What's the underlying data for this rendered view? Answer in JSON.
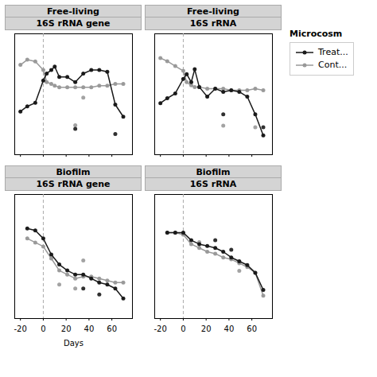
{
  "chart_data": [
    {
      "type": "line",
      "title": "Free-living",
      "subtitle": "16S rRNA gene",
      "xlim": [
        -25,
        78
      ],
      "xticks": [
        -20,
        0,
        20,
        40,
        60
      ],
      "ylim": [
        0.05,
        0.75
      ],
      "tick_labels": false,
      "ref_x": 0,
      "series": [
        {
          "name": "Treat...",
          "color": "#1a1a1a",
          "marker": "o",
          "x": [
            -20,
            -14,
            -7,
            0,
            3,
            7,
            10,
            14,
            21,
            28,
            35,
            42,
            49,
            56,
            63,
            70
          ],
          "values": [
            0.3,
            0.33,
            0.35,
            0.48,
            0.52,
            0.54,
            0.56,
            0.5,
            0.5,
            0.47,
            0.52,
            0.54,
            0.54,
            0.53,
            0.34,
            0.27
          ],
          "points_x": [
            -20,
            -14,
            -7,
            0,
            3,
            7,
            10,
            14,
            21,
            28,
            35,
            42,
            49,
            56,
            63,
            70,
            28,
            63
          ],
          "points_values": [
            0.3,
            0.33,
            0.35,
            0.48,
            0.52,
            0.54,
            0.56,
            0.5,
            0.5,
            0.47,
            0.52,
            0.54,
            0.54,
            0.53,
            0.34,
            0.27,
            0.2,
            0.17
          ]
        },
        {
          "name": "Cont...",
          "color": "#999999",
          "marker": "o",
          "x": [
            -20,
            -14,
            -7,
            0,
            3,
            7,
            10,
            14,
            21,
            28,
            35,
            42,
            49,
            56,
            63,
            70
          ],
          "values": [
            0.57,
            0.6,
            0.59,
            0.54,
            0.47,
            0.46,
            0.45,
            0.44,
            0.44,
            0.44,
            0.44,
            0.44,
            0.45,
            0.45,
            0.46,
            0.46
          ],
          "points_x": [
            -20,
            -14,
            -7,
            0,
            3,
            7,
            10,
            14,
            21,
            28,
            35,
            42,
            49,
            56,
            63,
            70,
            35,
            28
          ],
          "points_values": [
            0.57,
            0.6,
            0.59,
            0.54,
            0.47,
            0.46,
            0.45,
            0.44,
            0.44,
            0.44,
            0.44,
            0.44,
            0.45,
            0.45,
            0.46,
            0.46,
            0.38,
            0.22
          ]
        }
      ]
    },
    {
      "type": "line",
      "title": "Free-living",
      "subtitle": "16S rRNA",
      "xlim": [
        -25,
        78
      ],
      "xticks": [
        -20,
        0,
        20,
        40,
        60
      ],
      "ylim": [
        0.05,
        0.8
      ],
      "tick_labels": false,
      "ref_x": 0,
      "legend": "right",
      "legend_title": "Microcosm",
      "series": [
        {
          "name": "Treat...",
          "color": "#1a1a1a",
          "marker": "o",
          "x": [
            -20,
            -14,
            -7,
            0,
            3,
            7,
            10,
            14,
            21,
            28,
            35,
            42,
            49,
            56,
            63,
            70
          ],
          "values": [
            0.37,
            0.4,
            0.43,
            0.52,
            0.55,
            0.5,
            0.58,
            0.47,
            0.41,
            0.46,
            0.44,
            0.45,
            0.44,
            0.41,
            0.3,
            0.17
          ],
          "points_x": [
            -20,
            -14,
            -7,
            0,
            3,
            7,
            10,
            14,
            21,
            28,
            35,
            42,
            49,
            56,
            63,
            70,
            35,
            70
          ],
          "points_values": [
            0.37,
            0.4,
            0.43,
            0.52,
            0.55,
            0.5,
            0.58,
            0.47,
            0.41,
            0.46,
            0.44,
            0.45,
            0.44,
            0.41,
            0.3,
            0.17,
            0.3,
            0.22
          ]
        },
        {
          "name": "Cont...",
          "color": "#999999",
          "marker": "o",
          "x": [
            -20,
            -14,
            -7,
            0,
            3,
            7,
            10,
            14,
            21,
            28,
            35,
            42,
            49,
            56,
            63,
            70
          ],
          "values": [
            0.65,
            0.63,
            0.6,
            0.57,
            0.5,
            0.48,
            0.47,
            0.47,
            0.46,
            0.46,
            0.46,
            0.45,
            0.45,
            0.45,
            0.46,
            0.45
          ],
          "points_x": [
            -20,
            -14,
            -7,
            0,
            3,
            7,
            10,
            14,
            21,
            28,
            35,
            42,
            49,
            56,
            63,
            70,
            35,
            63
          ],
          "points_values": [
            0.65,
            0.63,
            0.6,
            0.57,
            0.5,
            0.48,
            0.47,
            0.47,
            0.46,
            0.46,
            0.46,
            0.45,
            0.45,
            0.45,
            0.46,
            0.45,
            0.23,
            0.22
          ]
        }
      ]
    },
    {
      "type": "line",
      "title": "Biofilm",
      "subtitle": "16S rRNA gene",
      "xlabel": "Days",
      "xlim": [
        -25,
        78
      ],
      "xticks": [
        -20,
        0,
        20,
        40,
        60
      ],
      "ylim": [
        0.28,
        0.9
      ],
      "tick_labels": "x",
      "ref_x": 0,
      "series": [
        {
          "name": "Treat...",
          "color": "#1a1a1a",
          "marker": "o",
          "x": [
            -14,
            -7,
            0,
            7,
            14,
            21,
            28,
            35,
            42,
            49,
            56,
            63,
            70
          ],
          "values": [
            0.73,
            0.72,
            0.68,
            0.6,
            0.55,
            0.52,
            0.5,
            0.5,
            0.48,
            0.46,
            0.45,
            0.43,
            0.38
          ],
          "points_x": [
            -14,
            -7,
            0,
            7,
            14,
            21,
            28,
            35,
            42,
            49,
            56,
            63,
            70,
            35,
            49
          ],
          "points_values": [
            0.73,
            0.72,
            0.68,
            0.6,
            0.55,
            0.52,
            0.5,
            0.5,
            0.48,
            0.46,
            0.45,
            0.43,
            0.38,
            0.43,
            0.4
          ]
        },
        {
          "name": "Cont...",
          "color": "#999999",
          "marker": "o",
          "x": [
            -14,
            -7,
            0,
            7,
            14,
            21,
            28,
            35,
            42,
            49,
            56,
            63,
            70
          ],
          "values": [
            0.68,
            0.66,
            0.64,
            0.58,
            0.52,
            0.5,
            0.48,
            0.49,
            0.49,
            0.48,
            0.47,
            0.46,
            0.46
          ],
          "points_x": [
            -14,
            -7,
            0,
            7,
            14,
            21,
            28,
            35,
            42,
            49,
            56,
            63,
            70,
            14,
            28,
            35
          ],
          "points_values": [
            0.68,
            0.66,
            0.64,
            0.58,
            0.52,
            0.5,
            0.48,
            0.49,
            0.49,
            0.48,
            0.47,
            0.46,
            0.46,
            0.45,
            0.43,
            0.57
          ]
        }
      ]
    },
    {
      "type": "line",
      "title": "Biofilm",
      "subtitle": "16S rRNA",
      "xlim": [
        -25,
        78
      ],
      "xticks": [
        -20,
        0,
        20,
        40,
        60
      ],
      "ylim": [
        0.15,
        0.8
      ],
      "tick_labels": "x",
      "ref_x": 0,
      "series": [
        {
          "name": "Treat...",
          "color": "#1a1a1a",
          "marker": "o",
          "x": [
            -14,
            -7,
            0,
            7,
            14,
            21,
            28,
            35,
            42,
            49,
            56,
            63,
            70
          ],
          "values": [
            0.6,
            0.6,
            0.6,
            0.56,
            0.54,
            0.53,
            0.52,
            0.5,
            0.47,
            0.45,
            0.43,
            0.39,
            0.3
          ],
          "points_x": [
            -14,
            -7,
            0,
            7,
            14,
            21,
            28,
            35,
            42,
            49,
            56,
            63,
            70,
            28,
            42
          ],
          "points_values": [
            0.6,
            0.6,
            0.6,
            0.56,
            0.54,
            0.53,
            0.52,
            0.5,
            0.47,
            0.45,
            0.43,
            0.39,
            0.3,
            0.56,
            0.51
          ]
        },
        {
          "name": "Cont...",
          "color": "#999999",
          "marker": "o",
          "x": [
            -14,
            -7,
            0,
            7,
            14,
            21,
            28,
            35,
            42,
            49,
            56,
            63,
            70
          ],
          "values": [
            0.6,
            0.6,
            0.59,
            0.54,
            0.52,
            0.5,
            0.49,
            0.47,
            0.46,
            0.44,
            0.42,
            0.39,
            0.27
          ],
          "points_x": [
            -14,
            -7,
            0,
            7,
            14,
            21,
            28,
            35,
            42,
            49,
            56,
            63,
            70,
            14,
            49
          ],
          "points_values": [
            0.6,
            0.6,
            0.59,
            0.54,
            0.52,
            0.5,
            0.49,
            0.47,
            0.46,
            0.44,
            0.42,
            0.39,
            0.27,
            0.55,
            0.4
          ]
        }
      ]
    }
  ]
}
